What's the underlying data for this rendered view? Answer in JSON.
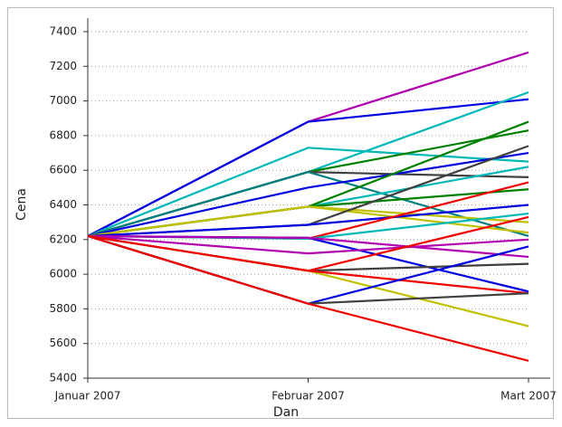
{
  "chart_data": {
    "type": "line",
    "x_label": "Dan",
    "y_label": "Cena",
    "categories": [
      "Januar 2007",
      "Februar 2007",
      "Mart 2007"
    ],
    "ylim": [
      5400,
      7400
    ],
    "yticks": [
      5400,
      5600,
      5800,
      6000,
      6200,
      6400,
      6600,
      6800,
      7000,
      7200,
      7400
    ],
    "grid": true,
    "series": [
      {
        "color": "#b000b0",
        "values": [
          6220,
          6880,
          7280
        ]
      },
      {
        "color": "#0000e0",
        "values": [
          6220,
          6880,
          7010
        ]
      },
      {
        "color": "#00b8b8",
        "values": [
          6220,
          6730,
          6650
        ]
      },
      {
        "color": "#00b8b8",
        "values": [
          6220,
          6590,
          7050
        ]
      },
      {
        "color": "#008000",
        "values": [
          6220,
          6590,
          6830
        ]
      },
      {
        "color": "#404040",
        "values": [
          6220,
          6590,
          6560
        ]
      },
      {
        "color": "#008080",
        "values": [
          6220,
          6590,
          6220
        ]
      },
      {
        "color": "#0000e0",
        "values": [
          6220,
          6500,
          6700
        ]
      },
      {
        "color": "#00b8b8",
        "values": [
          6220,
          6390,
          6620
        ]
      },
      {
        "color": "#008000",
        "values": [
          6220,
          6390,
          6880
        ]
      },
      {
        "color": "#008000",
        "values": [
          6220,
          6390,
          6490
        ]
      },
      {
        "color": "#c0c000",
        "values": [
          6220,
          6390,
          6240
        ]
      },
      {
        "color": "#c0c000",
        "values": [
          6220,
          6390,
          6300
        ]
      },
      {
        "color": "#404040",
        "values": [
          6220,
          6285,
          6740
        ]
      },
      {
        "color": "#0000e0",
        "values": [
          6220,
          6285,
          6400
        ]
      },
      {
        "color": "#f00000",
        "values": [
          6220,
          6205,
          6530
        ]
      },
      {
        "color": "#00b8b8",
        "values": [
          6220,
          6205,
          6350
        ]
      },
      {
        "color": "#0000e0",
        "values": [
          6220,
          6210,
          5900
        ]
      },
      {
        "color": "#b000b0",
        "values": [
          6220,
          6210,
          6100
        ]
      },
      {
        "color": "#b000b0",
        "values": [
          6220,
          6120,
          6200
        ]
      },
      {
        "color": "#c0c000",
        "values": [
          6220,
          6020,
          5700
        ]
      },
      {
        "color": "#404040",
        "values": [
          6220,
          6020,
          6060
        ]
      },
      {
        "color": "#f00000",
        "values": [
          6220,
          6020,
          6330
        ]
      },
      {
        "color": "#f00000",
        "values": [
          6220,
          6020,
          5890
        ]
      },
      {
        "color": "#0000e0",
        "values": [
          6220,
          5830,
          6160
        ]
      },
      {
        "color": "#404040",
        "values": [
          6220,
          5830,
          5890
        ]
      },
      {
        "color": "#f00000",
        "values": [
          6220,
          5830,
          5500
        ]
      }
    ]
  }
}
